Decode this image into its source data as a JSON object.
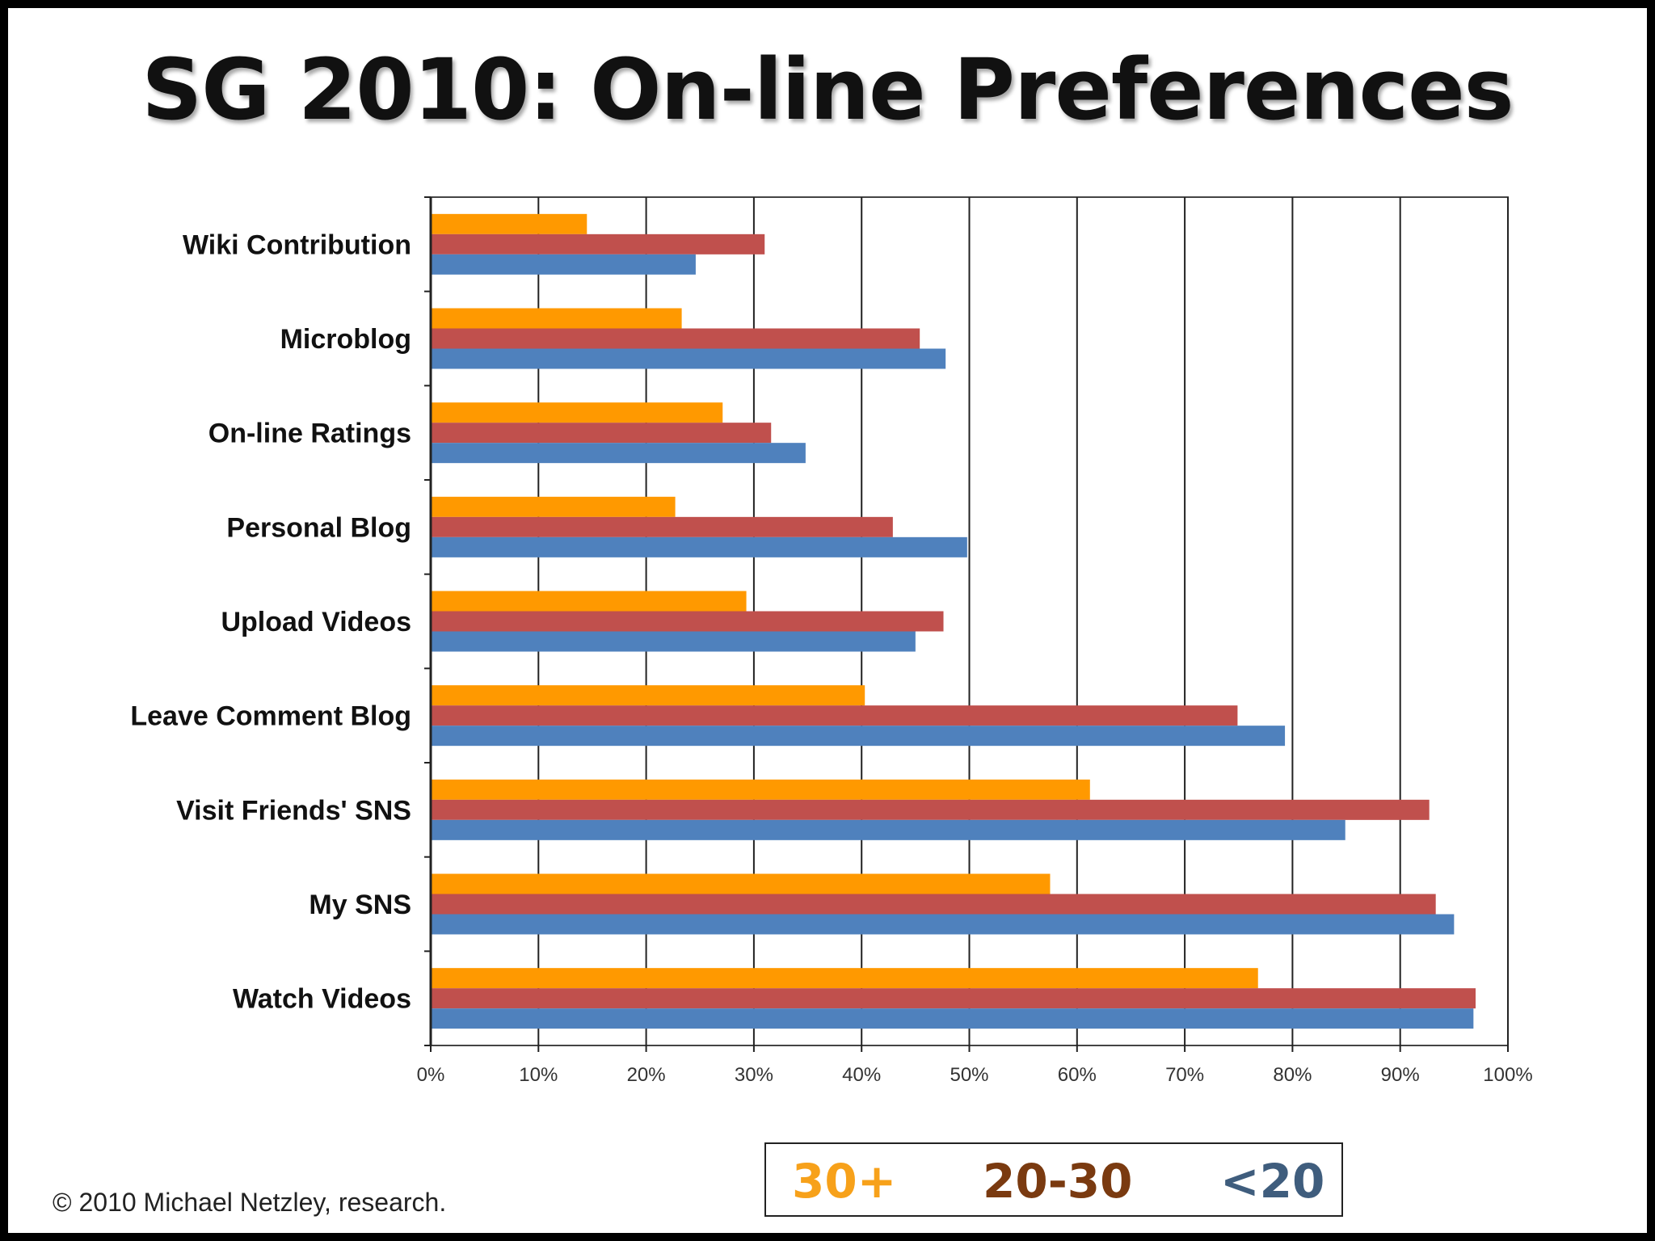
{
  "slide": {
    "title": "SG 2010: On-line Preferences",
    "copyright": "© 2010 Michael Netzley, research."
  },
  "chart_data": {
    "type": "bar",
    "orientation": "horizontal",
    "title": "SG 2010: On-line Preferences",
    "xlabel": "",
    "ylabel": "",
    "xlim": [
      0,
      100
    ],
    "x_tick_labels": [
      "0%",
      "10%",
      "20%",
      "30%",
      "40%",
      "50%",
      "60%",
      "70%",
      "80%",
      "90%",
      "100%"
    ],
    "grid": "vertical",
    "categories": [
      "Wiki Contribution",
      "Microblog",
      "On-line Ratings",
      "Personal Blog",
      "Upload Videos",
      "Leave Comment Blog",
      "Visit Friends' SNS",
      "My SNS",
      "Watch Videos"
    ],
    "series": [
      {
        "name": "30+",
        "color": "#FF9900",
        "values": [
          14.5,
          23.3,
          27.1,
          22.7,
          29.3,
          40.3,
          61.2,
          57.5,
          76.8
        ]
      },
      {
        "name": "20-30",
        "color": "#C0504D",
        "values": [
          31.0,
          45.4,
          31.6,
          42.9,
          47.6,
          74.9,
          92.7,
          93.3,
          97.0
        ]
      },
      {
        "name": "<20",
        "color": "#4F81BD",
        "values": [
          24.6,
          47.8,
          34.8,
          49.8,
          45.0,
          79.3,
          84.9,
          95.0,
          96.8
        ]
      }
    ],
    "legend": {
      "position": "bottom",
      "entries": [
        {
          "label": "30+",
          "color": "#F7A11A"
        },
        {
          "label": "20-30",
          "color": "#7A3A10"
        },
        {
          "label": "<20",
          "color": "#3F5D7D"
        }
      ]
    }
  }
}
